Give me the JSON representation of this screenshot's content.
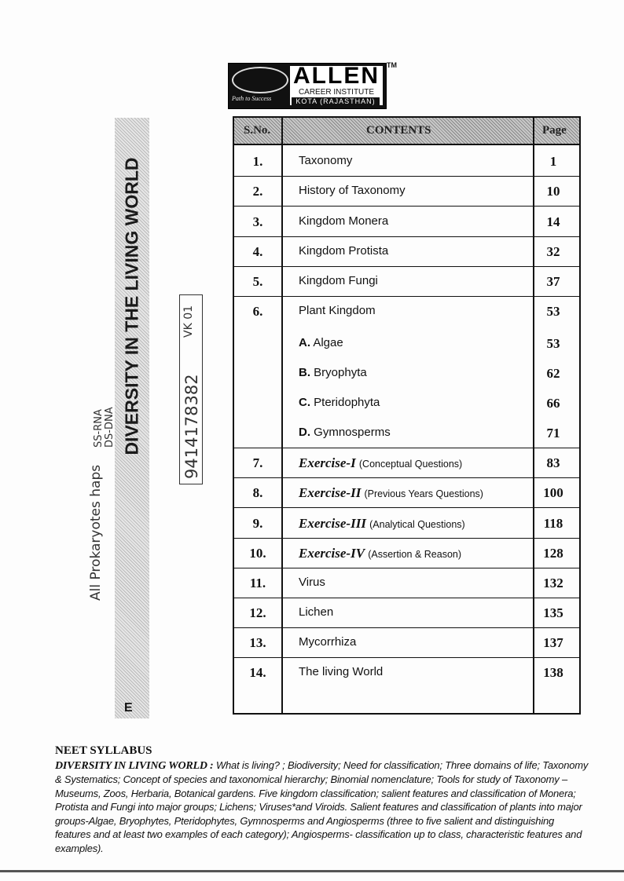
{
  "logo": {
    "name": "ALLEN",
    "subtitle": "CAREER INSTITUTE",
    "city": "KOTA (RAJASTHAN)",
    "tagline": "Path to Success",
    "tm": "TM"
  },
  "banner": {
    "title": "DIVERSITY IN THE LIVING WORLD",
    "letter": "E"
  },
  "toc": {
    "headers": {
      "sno": "S.No.",
      "contents": "CONTENTS",
      "page": "Page"
    },
    "rows": [
      {
        "sno": "1.",
        "title": "Taxonomy",
        "page": "1"
      },
      {
        "sno": "2.",
        "title": "History of Taxonomy",
        "page": "10"
      },
      {
        "sno": "3.",
        "title": "Kingdom Monera",
        "page": "14"
      },
      {
        "sno": "4.",
        "title": "Kingdom Protista",
        "page": "32"
      },
      {
        "sno": "5.",
        "title": "Kingdom Fungi",
        "page": "37"
      },
      {
        "sno": "6.",
        "title": "Plant Kingdom",
        "page": "53"
      },
      {
        "sno": "",
        "letter": "A.",
        "title": "Algae",
        "page": "53"
      },
      {
        "sno": "",
        "letter": "B.",
        "title": "Bryophyta",
        "page": "62"
      },
      {
        "sno": "",
        "letter": "C.",
        "title": "Pteridophyta",
        "page": "66"
      },
      {
        "sno": "",
        "letter": "D.",
        "title": "Gymnosperms",
        "page": "71"
      },
      {
        "sno": "7.",
        "bold": "Exercise-I",
        "title": "(Conceptual Questions)",
        "page": "83"
      },
      {
        "sno": "8.",
        "bold": "Exercise-II",
        "title": "(Previous Years Questions)",
        "page": "100"
      },
      {
        "sno": "9.",
        "bold": "Exercise-III",
        "title": "(Analytical Questions)",
        "page": "118"
      },
      {
        "sno": "10.",
        "bold": "Exercise-IV",
        "title": "(Assertion & Reason)",
        "page": "128"
      },
      {
        "sno": "11.",
        "title": "Virus",
        "page": "132"
      },
      {
        "sno": "12.",
        "title": "Lichen",
        "page": "135"
      },
      {
        "sno": "13.",
        "title": "Mycorrhiza",
        "page": "137"
      },
      {
        "sno": "14.",
        "title": "The living World",
        "page": "138"
      }
    ]
  },
  "syllabus": {
    "heading": "NEET SYLLABUS",
    "subject": "DIVERSITY IN LIVING WORLD :",
    "text": "What is living? ; Biodiversity; Need for classification; Three domains of life; Taxonomy & Systematics; Concept of species and taxonomical hierarchy; Binomial nomenclature; Tools for study of Taxonomy – Museums, Zoos, Herbaria, Botanical gardens.  Five kingdom classification; salient features and classification of Monera; Protista and Fungi into major groups; Lichens; Viruses*and Viroids. Salient features and classification of plants into major groups-Algae, Bryophytes, Pteridophytes, Gymnosperms and Angiosperms (three to five salient and distinguishing features and at least two examples of each category); Angiosperms- classification up to class, characteristic features and examples)."
  },
  "handwriting": {
    "note1": "All Prokaryotes haps",
    "note2": "SS-RNA",
    "note3": "DS-DNA",
    "phone": "9414178382",
    "tag": "VK 01"
  }
}
